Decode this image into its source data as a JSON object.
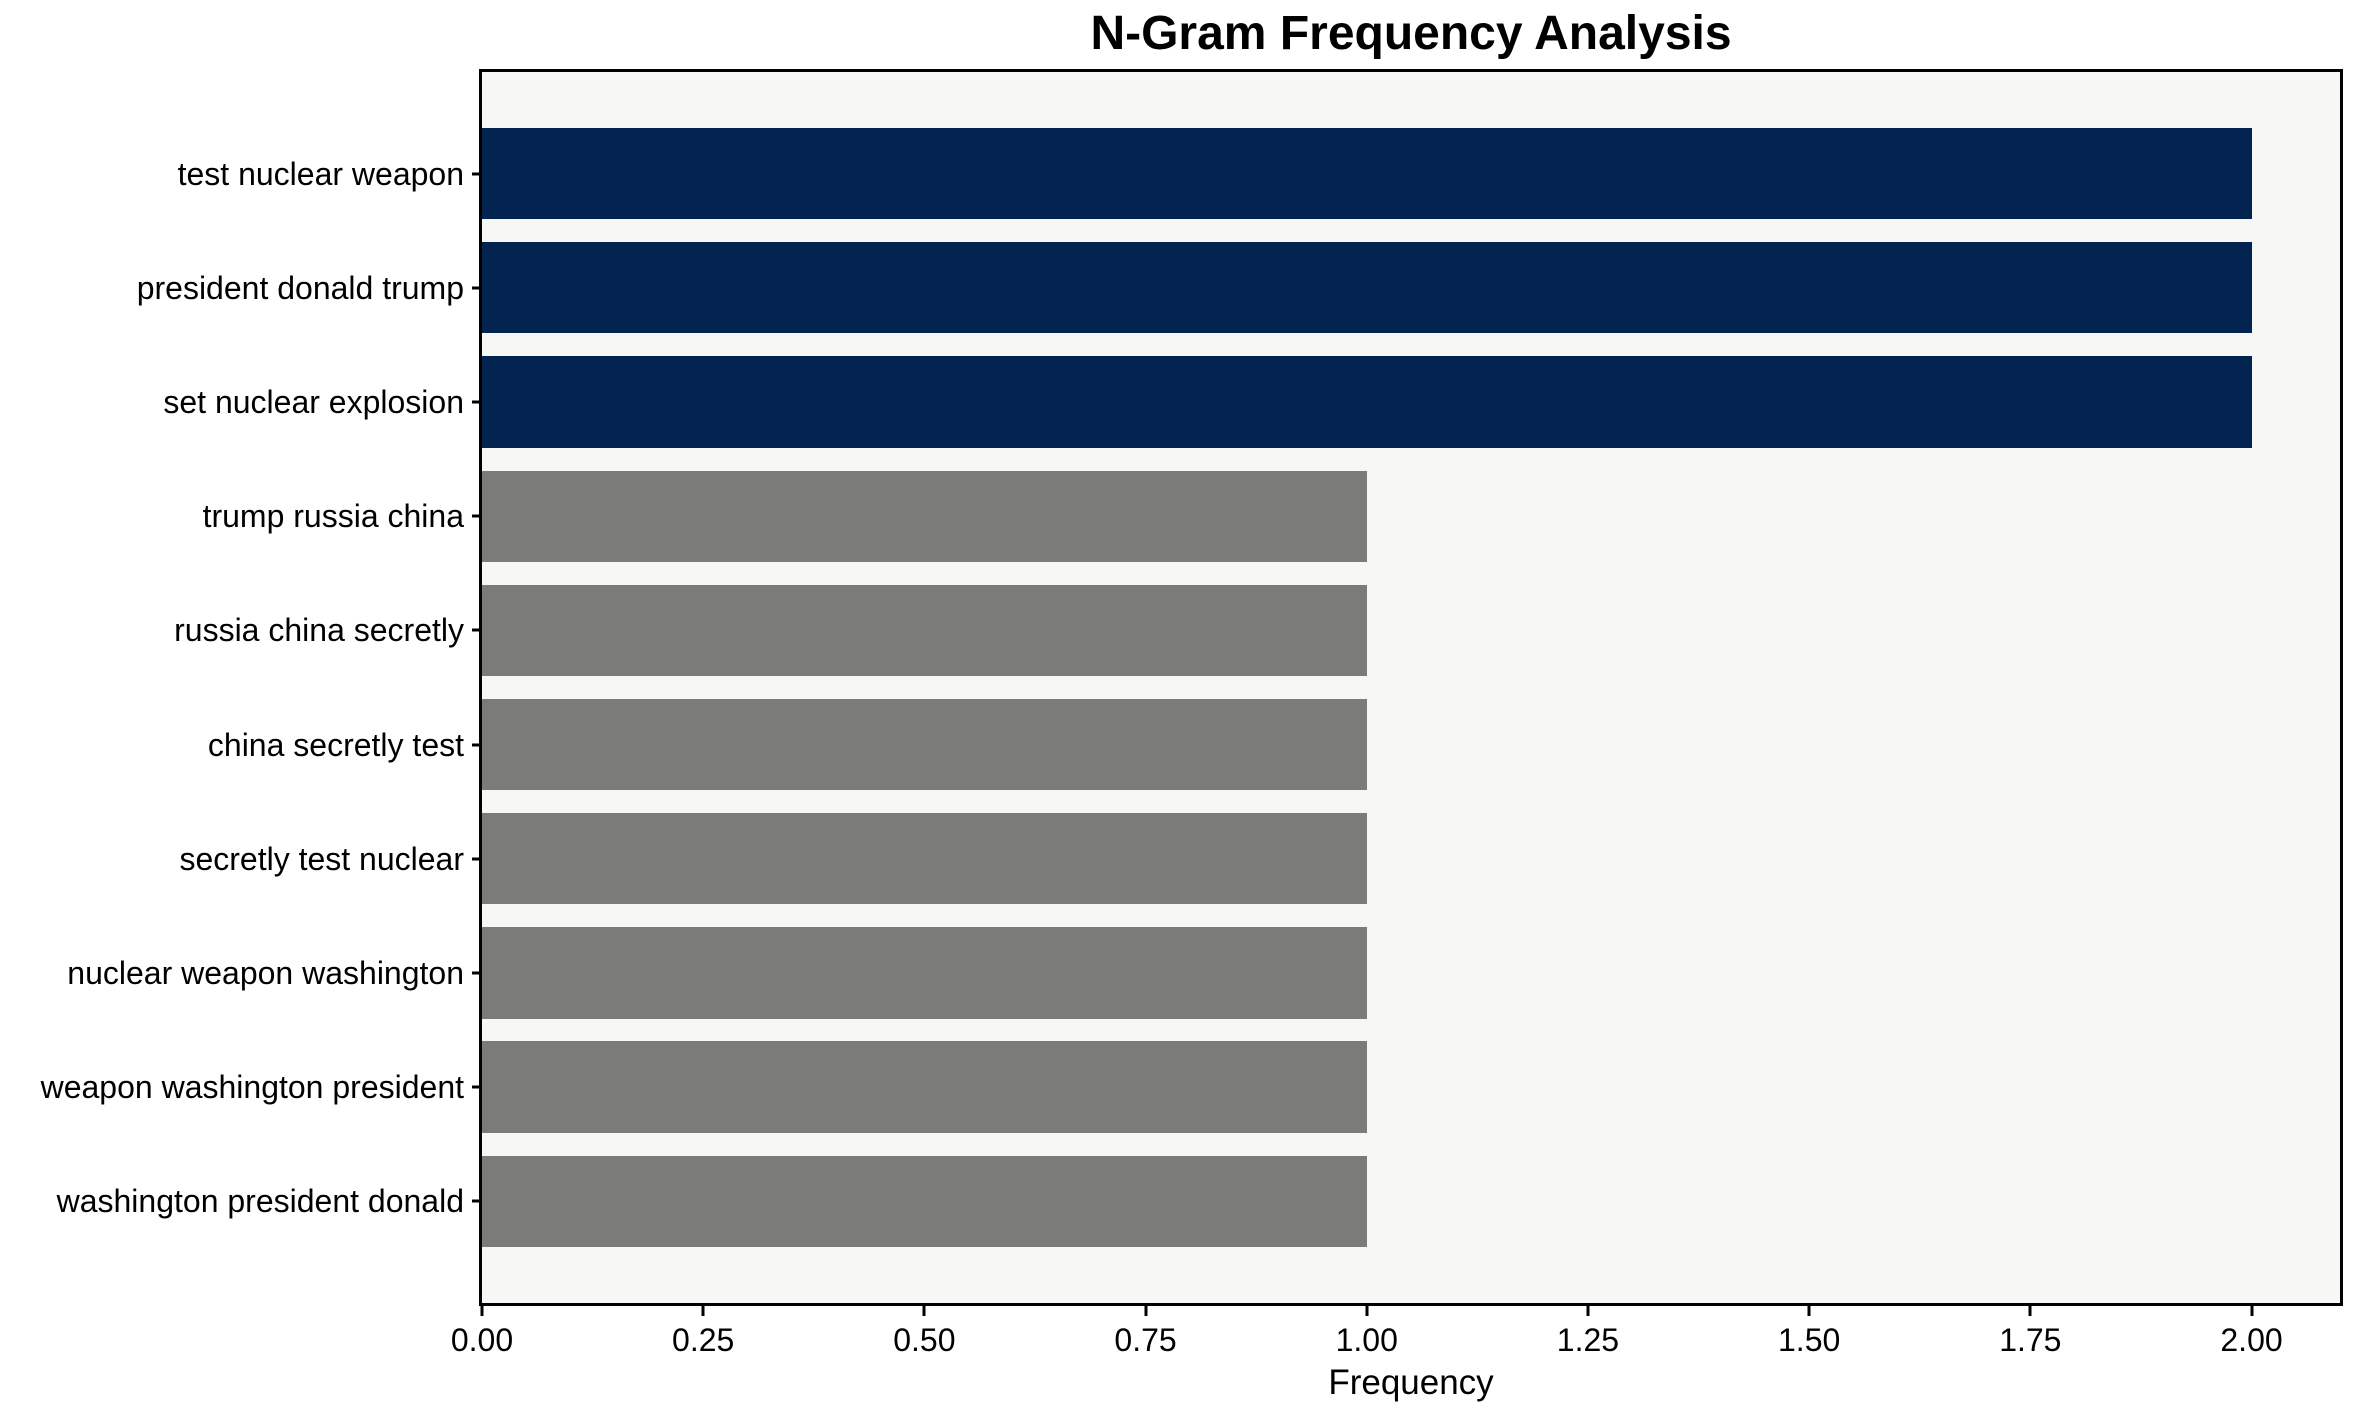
{
  "chart_data": {
    "type": "bar",
    "orientation": "horizontal",
    "title": "N-Gram Frequency Analysis",
    "xlabel": "Frequency",
    "ylabel": "",
    "categories": [
      "test nuclear weapon",
      "president donald trump",
      "set nuclear explosion",
      "trump russia china",
      "russia china secretly",
      "china secretly test",
      "secretly test nuclear",
      "nuclear weapon washington",
      "weapon washington president",
      "washington president donald"
    ],
    "values": [
      2,
      2,
      2,
      1,
      1,
      1,
      1,
      1,
      1,
      1
    ],
    "bar_colors": [
      "#032450",
      "#032450",
      "#032450",
      "#7b7b78",
      "#7b7b78",
      "#7b7b78",
      "#7b7b78",
      "#7b7b78",
      "#7b7b78",
      "#7b7b78"
    ],
    "xlim": [
      0,
      2.1
    ],
    "x_tick_values": [
      0,
      0.25,
      0.5,
      0.75,
      1.0,
      1.25,
      1.5,
      1.75,
      2.0
    ],
    "x_tick_labels": [
      "0.00",
      "0.25",
      "0.50",
      "0.75",
      "1.00",
      "1.25",
      "1.50",
      "1.75",
      "2.00"
    ],
    "grid": false,
    "legend": null,
    "colors": {
      "highlight_bar": "#032450",
      "default_bar": "#7b7b78",
      "plot_background": "#f7f7f6",
      "figure_background": "#ffffff",
      "spine": "#000000",
      "text": "#000000"
    }
  }
}
